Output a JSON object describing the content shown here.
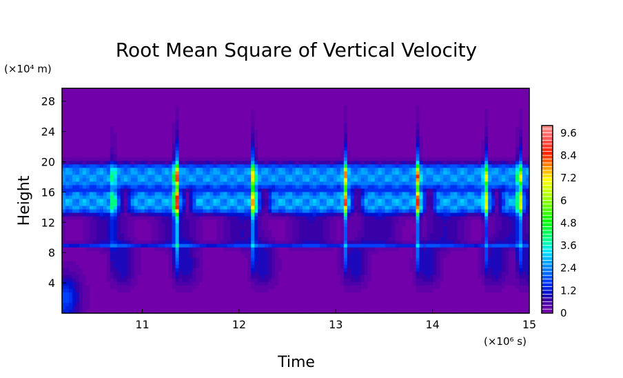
{
  "chart_data": {
    "type": "heatmap",
    "title": "Root Mean Square of Vertical Velocity",
    "xlabel": "Time",
    "ylabel": "Height",
    "x_unit_label": "(×10⁶ s)",
    "y_unit_label": "(×10⁴ m)",
    "xlim": [
      10.17,
      15
    ],
    "ylim": [
      0,
      29.7
    ],
    "x_ticks": [
      "11",
      "12",
      "13",
      "14",
      "15"
    ],
    "x_tick_values": [
      11,
      12,
      13,
      14,
      15
    ],
    "y_ticks": [
      "4",
      "8",
      "12",
      "16",
      "20",
      "24",
      "28"
    ],
    "y_tick_values": [
      4,
      8,
      12,
      16,
      20,
      24,
      28
    ],
    "colorbar": {
      "min": 0,
      "max": 10,
      "step": 0.2,
      "tick_labels": [
        "0",
        "1.2",
        "2.4",
        "3.6",
        "4.8",
        "6",
        "7.2",
        "8.4",
        "9.6"
      ],
      "tick_values": [
        0,
        1.2,
        2.4,
        3.6,
        4.8,
        6,
        7.2,
        8.4,
        9.6
      ],
      "color_stops": [
        [
          0,
          "#7200aa"
        ],
        [
          0.6,
          "#3a00a8"
        ],
        [
          1.0,
          "#0010d0"
        ],
        [
          1.6,
          "#0040ff"
        ],
        [
          2.4,
          "#0090ff"
        ],
        [
          3.2,
          "#00e8ff"
        ],
        [
          3.8,
          "#00ff90"
        ],
        [
          4.8,
          "#00ff00"
        ],
        [
          6.0,
          "#a0ff00"
        ],
        [
          7.0,
          "#ffff00"
        ],
        [
          7.6,
          "#ffa000"
        ],
        [
          8.4,
          "#ff2000"
        ],
        [
          9.2,
          "#ff5a5a"
        ],
        [
          10,
          "#ff9a9a"
        ]
      ]
    },
    "features": {
      "upper_layer": {
        "height_range": [
          16.5,
          19.8
        ],
        "value": 2.4
      },
      "lower_layer": {
        "height_range": [
          13.2,
          16.2
        ],
        "value": 2.6
      },
      "thin_line_height": 9,
      "bursts": [
        {
          "time": 10.7,
          "peak": 3.0
        },
        {
          "time": 11.35,
          "peak": 9.5
        },
        {
          "time": 12.15,
          "peak": 7.2
        },
        {
          "time": 13.1,
          "peak": 7.0
        },
        {
          "time": 13.85,
          "peak": 7.6
        },
        {
          "time": 14.55,
          "peak": 5.8
        },
        {
          "time": 14.9,
          "peak": 6.6
        }
      ],
      "surface_blob": {
        "time": 10.2,
        "height": 2,
        "value": 1.6
      }
    }
  }
}
